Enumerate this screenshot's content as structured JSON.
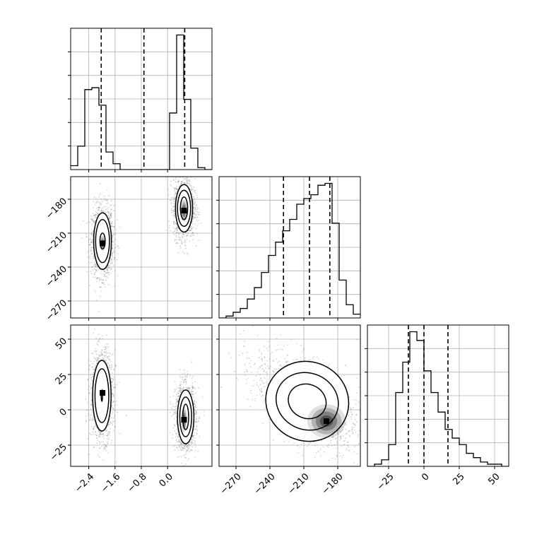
{
  "chart_data": {
    "type": "corner",
    "parameters": [
      {
        "range": [
          -2.95,
          1.35
        ],
        "ticks": [
          -2.4,
          -1.6,
          -0.8,
          0.0
        ],
        "tick_labels": [
          "−2.4",
          "−1.6",
          "−0.8",
          "0.0"
        ]
      },
      {
        "range": [
          -285,
          -160
        ],
        "ticks": [
          -270,
          -240,
          -210,
          -180
        ],
        "tick_labels": [
          "−270",
          "−240",
          "−210",
          "−180"
        ]
      },
      {
        "range": [
          -40,
          60
        ],
        "ticks": [
          -25,
          0,
          25,
          50
        ],
        "tick_labels": [
          "−25",
          "0",
          "25",
          "50"
        ]
      }
    ],
    "histograms": [
      {
        "param": 0,
        "bin_edges": [
          -2.95,
          -2.735,
          -2.52,
          -2.305,
          -2.09,
          -1.875,
          -1.66,
          -1.445,
          -1.23,
          -1.015,
          -0.8,
          -0.585,
          -0.37,
          -0.155,
          0.06,
          0.275,
          0.49,
          0.705,
          0.92,
          1.135,
          1.35
        ],
        "counts": [
          2,
          12,
          41,
          42,
          33,
          9,
          3,
          0,
          0,
          0,
          0,
          0,
          0,
          0,
          29,
          69,
          36,
          11,
          1,
          0
        ],
        "quantiles": [
          -2.02,
          -0.72,
          0.52
        ]
      },
      {
        "param": 1,
        "bin_edges": [
          -285,
          -278.75,
          -272.5,
          -266.25,
          -260,
          -253.75,
          -247.5,
          -241.25,
          -235,
          -228.75,
          -222.5,
          -216.25,
          -210,
          -203.75,
          -197.5,
          -191.25,
          -185,
          -178.75,
          -172.5,
          -166.25,
          -160
        ],
        "counts": [
          0,
          1,
          3,
          5,
          10,
          16,
          24,
          33,
          40,
          46,
          52,
          60,
          63,
          65,
          70,
          71,
          50,
          20,
          7,
          2
        ],
        "quantiles": [
          -228,
          -205,
          -187
        ]
      },
      {
        "param": 2,
        "bin_edges": [
          -40,
          -35,
          -30,
          -25,
          -20,
          -15,
          -10,
          -5,
          0,
          5,
          10,
          15,
          20,
          25,
          30,
          35,
          40,
          45,
          50,
          55,
          60
        ],
        "counts": [
          0,
          1,
          3,
          10,
          34,
          48,
          62,
          58,
          44,
          34,
          25,
          17,
          13,
          10,
          6,
          4,
          2,
          1,
          1,
          0
        ],
        "quantiles": [
          -11,
          0,
          17
        ]
      }
    ],
    "scatter_2d": [
      {
        "x_param": 0,
        "y_param": 1,
        "modes": [
          {
            "center": [
              -1.98,
              -217
            ],
            "contour_levels": [
              {
                "sx": 0.27,
                "sy": 25
              },
              {
                "sx": 0.21,
                "sy": 19
              },
              {
                "sx": 0.08,
                "sy": 7
              }
            ],
            "peak": [
              -1.98,
              -219
            ]
          },
          {
            "center": [
              0.5,
              -188
            ],
            "contour_levels": [
              {
                "sx": 0.26,
                "sy": 21
              },
              {
                "sx": 0.2,
                "sy": 16
              },
              {
                "sx": 0.11,
                "sy": 10
              }
            ],
            "peak": [
              0.5,
              -190
            ]
          }
        ]
      },
      {
        "x_param": 0,
        "y_param": 2,
        "modes": [
          {
            "center": [
              -2.0,
              10
            ],
            "contour_levels": [
              {
                "sx": 0.28,
                "sy": 25
              },
              {
                "sx": 0.21,
                "sy": 19
              },
              {
                "sx": 0.02,
                "sy": 4
              }
            ],
            "peak": [
              -1.98,
              12
            ]
          },
          {
            "center": [
              0.55,
              -5
            ],
            "contour_levels": [
              {
                "sx": 0.25,
                "sy": 19
              },
              {
                "sx": 0.18,
                "sy": 14
              },
              {
                "sx": 0.09,
                "sy": 9
              }
            ],
            "peak": [
              0.5,
              -7
            ]
          }
        ]
      },
      {
        "x_param": 1,
        "y_param": 2,
        "modes": [
          {
            "center": [
              -207,
              6
            ],
            "contour_levels": [
              {
                "sx": 37,
                "sy": 28
              },
              {
                "sx": 28,
                "sy": 20
              },
              {
                "sx": 17,
                "sy": 12
              }
            ],
            "peak": [
              -190,
              -8
            ]
          }
        ],
        "correlation": -0.55
      }
    ],
    "grid": true,
    "xlabel": "",
    "ylabel": "",
    "title": ""
  }
}
